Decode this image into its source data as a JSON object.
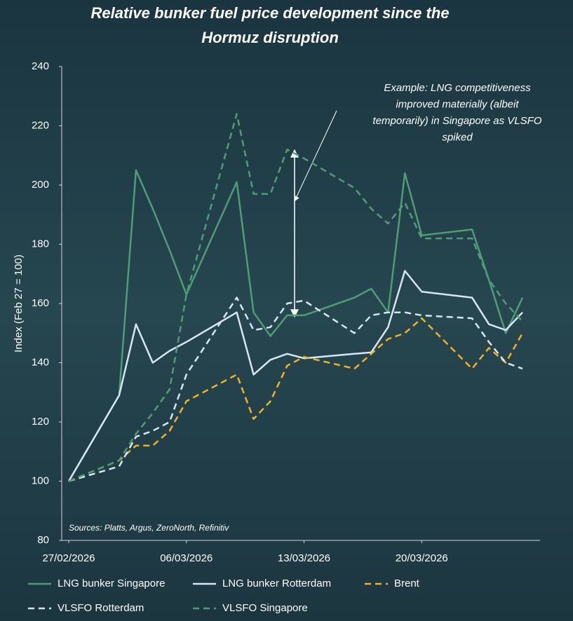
{
  "chart_data": {
    "type": "line",
    "title": [
      "Relative bunker fuel price development since the",
      "Hormuz disruption"
    ],
    "y_label": "Index (Feb 27 = 100)",
    "source": "Sources: Platts, Argus, ZeroNorth, Refinitiv",
    "annotation": [
      "Example: LNG competitiveness",
      "improved materially (albeit",
      "temporarily) in Singapore as VLSFO",
      "spiked"
    ],
    "x": [
      "27/02/2026",
      "02/03/2026",
      "03/03/2026",
      "04/03/2026",
      "05/03/2026",
      "06/03/2026",
      "09/03/2026",
      "10/03/2026",
      "11/03/2026",
      "12/03/2026",
      "13/03/2026",
      "16/03/2026",
      "17/03/2026",
      "18/03/2026",
      "19/03/2026",
      "20/03/2026",
      "23/03/2026",
      "24/03/2026",
      "25/03/2026",
      "26/03/2026"
    ],
    "xlim": [
      "27/02/2026",
      "27/03/2026"
    ],
    "xticks": [
      "27/02/2026",
      "06/03/2026",
      "13/03/2026",
      "20/03/2026"
    ],
    "ylim": [
      80,
      240
    ],
    "yticks": [
      80,
      100,
      120,
      140,
      160,
      180,
      200,
      220,
      240
    ],
    "series": [
      {
        "name": "LNG bunker Singapore",
        "color": "#4e9e74",
        "dashed": false,
        "values": [
          100,
          129,
          205,
          192,
          178,
          163,
          201,
          157,
          149,
          156,
          156,
          162,
          165,
          157,
          204,
          183,
          185,
          168,
          150,
          162
        ]
      },
      {
        "name": "LNG bunker Rotterdam",
        "color": "#d6e6f2",
        "dashed": false,
        "values": [
          100,
          129,
          153,
          140,
          144,
          147,
          157,
          136,
          141,
          143,
          141.5,
          143,
          143.5,
          152,
          171,
          164,
          162,
          153,
          151,
          157
        ]
      },
      {
        "name": "Brent",
        "color": "#f2b31b",
        "dashed": true,
        "values": [
          100,
          107,
          112,
          112,
          117,
          127,
          136,
          121,
          127,
          139,
          142,
          138,
          143,
          148,
          150,
          155,
          138,
          145,
          140,
          150
        ]
      },
      {
        "name": "VLSFO Rotterdam",
        "color": "#d6e6f2",
        "dashed": true,
        "values": [
          100,
          105,
          115,
          117,
          120,
          136,
          162,
          151,
          152,
          160,
          161,
          150,
          156,
          157,
          157,
          156,
          155,
          147,
          140,
          138
        ]
      },
      {
        "name": "VLSFO Singapore",
        "color": "#4e9e74",
        "dashed": true,
        "values": [
          100,
          107,
          116,
          123,
          131,
          163,
          224,
          197,
          197,
          212,
          209,
          199,
          192,
          187,
          194,
          182,
          182,
          168,
          160,
          154
        ]
      }
    ]
  }
}
